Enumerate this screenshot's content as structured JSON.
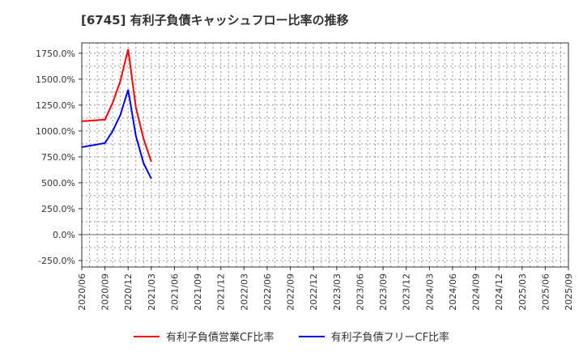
{
  "chart_data": {
    "type": "line",
    "title": "[6745]  有利子負債キャッシュフロー比率の推移",
    "xlabel": "",
    "ylabel": "",
    "ylim": [
      -312.5,
      1850
    ],
    "yticks": [
      -250,
      0,
      250,
      500,
      750,
      1000,
      1250,
      1500,
      1750
    ],
    "ytick_labels": [
      "-250.0%",
      "0.0%",
      "250.0%",
      "500.0%",
      "750.0%",
      "1000.0%",
      "1250.0%",
      "1500.0%",
      "1750.0%"
    ],
    "xtick_labels": [
      "2020/06",
      "2020/09",
      "2020/12",
      "2021/03",
      "2021/06",
      "2021/09",
      "2021/12",
      "2022/03",
      "2022/06",
      "2022/09",
      "2022/12",
      "2023/03",
      "2023/06",
      "2023/09",
      "2023/12",
      "2024/03",
      "2024/06",
      "2024/09",
      "2024/12",
      "2025/03",
      "2025/06",
      "2025/09"
    ],
    "x": [
      "2020/06",
      "2020/09",
      "2020/10",
      "2020/11",
      "2020/12",
      "2021/01",
      "2021/02",
      "2021/03"
    ],
    "x_months": [
      0,
      3,
      4,
      5,
      6,
      7,
      8,
      9
    ],
    "grid": true,
    "legend_position": "bottom",
    "series": [
      {
        "name": "有利子負債営業CF比率",
        "color": "#ff0000",
        "values": [
          1094,
          1109,
          1273,
          1484,
          1789,
          1227,
          922,
          703
        ]
      },
      {
        "name": "有利子負債フリーCF比率",
        "color": "#0000ff",
        "values": [
          844,
          883,
          1000,
          1156,
          1398,
          953,
          688,
          539
        ]
      }
    ]
  }
}
